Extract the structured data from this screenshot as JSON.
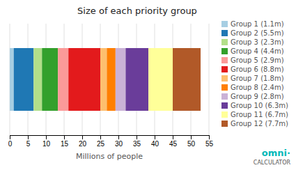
{
  "chart_data": {
    "type": "bar",
    "title": "Size of each priority group",
    "xlabel": "Millions of people",
    "orientation": "horizontal",
    "stacked": true,
    "grid": true,
    "legend": "right",
    "tick_labels": "x",
    "categories": [
      null
    ],
    "series": [
      {
        "name": "Group 1 (1.1m)",
        "values": [
          1.1
        ]
      },
      {
        "name": "Group 2 (5.5m)",
        "values": [
          5.5
        ]
      },
      {
        "name": "Group 3 (2.3m)",
        "values": [
          2.3
        ]
      },
      {
        "name": "Group 4 (4.4m)",
        "values": [
          4.4
        ]
      },
      {
        "name": "Group 5 (2.9m)",
        "values": [
          2.9
        ]
      },
      {
        "name": "Group 6 (8.8m)",
        "values": [
          8.8
        ]
      },
      {
        "name": "Group 7 (1.8m)",
        "values": [
          1.8
        ]
      },
      {
        "name": "Group 8 (2.4m)",
        "values": [
          2.4
        ]
      },
      {
        "name": "Group 9 (2.8m)",
        "values": [
          2.8
        ]
      },
      {
        "name": "Group 10 (6.3m)",
        "values": [
          6.3
        ]
      },
      {
        "name": "Group 11 (6.7m)",
        "values": [
          6.7
        ]
      },
      {
        "name": "Group 12 (7.7m)",
        "values": [
          7.7
        ]
      }
    ],
    "xlim": [
      0,
      55
    ],
    "xticks": [
      0,
      5,
      10,
      15,
      20,
      25,
      30,
      35,
      40,
      45,
      50,
      55
    ],
    "annotations": [
      "omni·",
      "CALCULATOR"
    ]
  }
}
